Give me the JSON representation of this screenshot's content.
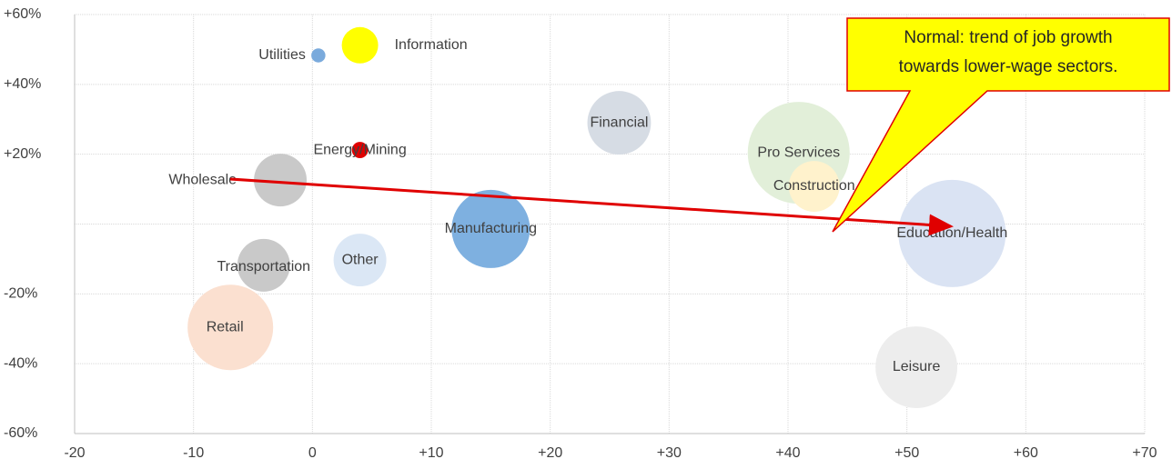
{
  "chart_data": {
    "type": "bubble",
    "categories": [
      "Utilities",
      "Information",
      "Energy/Mining",
      "Financial",
      "Pro Services",
      "Construction",
      "Wholesale",
      "Manufacturing",
      "Education/Health",
      "Other",
      "Transportation",
      "Retail",
      "Leisure"
    ],
    "x": [
      0.5,
      4.0,
      4.0,
      25.8,
      40.9,
      42.2,
      -2.7,
      15.0,
      53.8,
      4.0,
      -4.1,
      -6.9,
      50.8
    ],
    "values": [
      48.3,
      51.2,
      21.2,
      29,
      20.4,
      10.8,
      12.6,
      -1.4,
      -2.7,
      -10.3,
      -11.8,
      -29.6,
      -41
    ],
    "sizes": [
      6,
      40,
      8,
      122,
      314,
      78,
      84,
      185,
      348,
      84,
      84,
      221,
      202
    ],
    "colors": [
      "#7aaadc",
      "#ffff00",
      "#e00000",
      "#d6dce4",
      "#e2efd9",
      "#fff2cc",
      "#c9c9c9",
      "#7eb0e0",
      "#dae3f3",
      "#dbe7f5",
      "#c9c9c9",
      "#fbe0d0",
      "#ededed"
    ],
    "xlim": [
      -20,
      70
    ],
    "xticks": [
      -20,
      -10,
      0,
      {
        "value": 10,
        "label": "+10"
      },
      {
        "value": 20,
        "label": "+20"
      },
      {
        "value": 30,
        "label": "+30"
      },
      {
        "value": 40,
        "label": "+40"
      },
      {
        "value": 50,
        "label": "+50"
      },
      {
        "value": 60,
        "label": "+60"
      },
      {
        "value": 70,
        "label": "+70"
      }
    ],
    "ylim": [
      -60,
      60
    ],
    "yticks": [
      {
        "value": -60,
        "label": "-60%"
      },
      {
        "value": -40,
        "label": "-40%"
      },
      {
        "value": -20,
        "label": "-20%"
      },
      {
        "value": 0,
        "label": null
      },
      {
        "value": 20,
        "label": "+20%"
      },
      {
        "value": 40,
        "label": "+40%"
      },
      {
        "value": 60,
        "label": "+60%"
      }
    ],
    "grid": true,
    "annotation": [
      "Normal: trend of job growth",
      "towards lower-wage sectors."
    ]
  }
}
